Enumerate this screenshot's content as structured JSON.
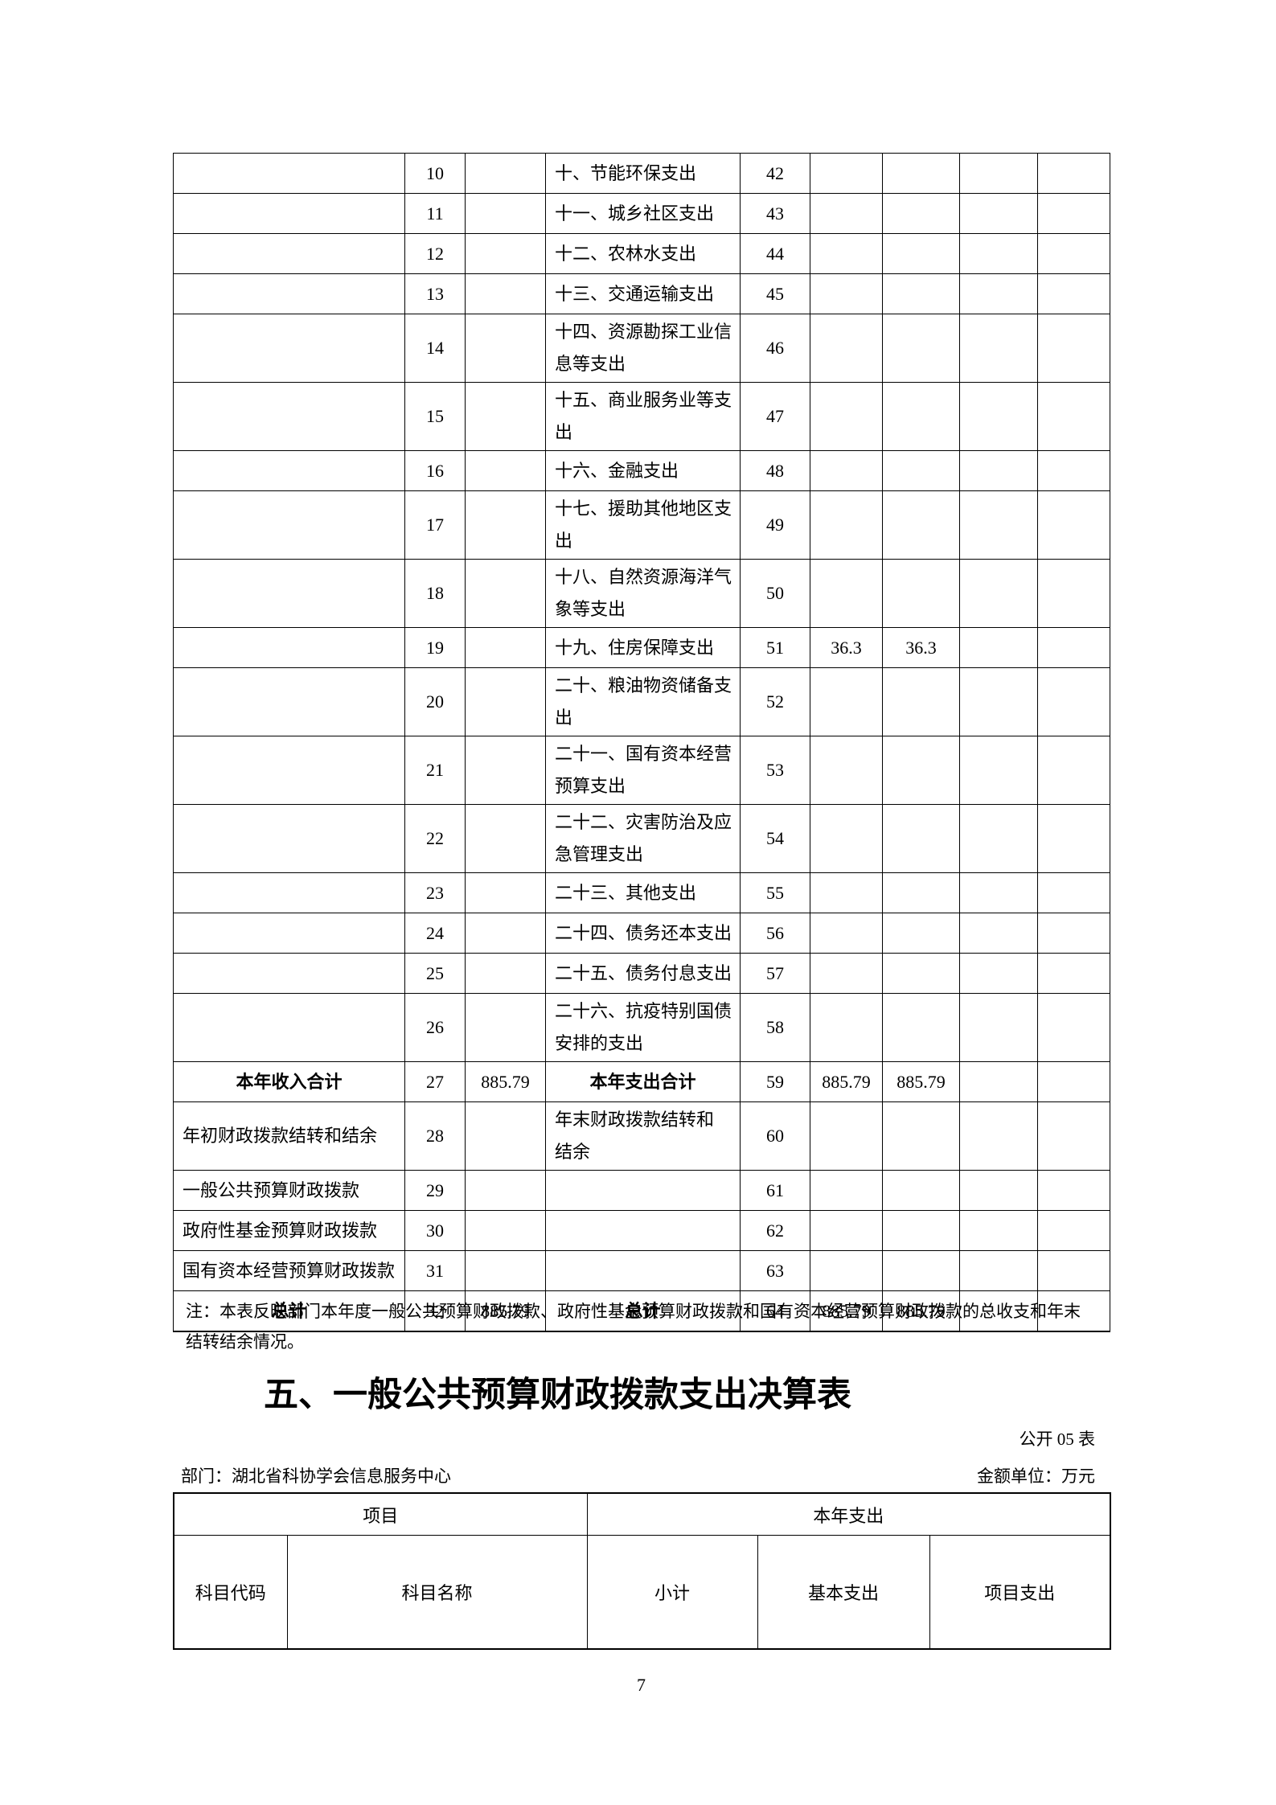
{
  "table1": {
    "rows": [
      {
        "cells": [
          "",
          "10",
          "",
          "十、节能环保支出",
          "42",
          "",
          "",
          "",
          ""
        ]
      },
      {
        "cells": [
          "",
          "11",
          "",
          "十一、城乡社区支出",
          "43",
          "",
          "",
          "",
          ""
        ]
      },
      {
        "cells": [
          "",
          "12",
          "",
          "十二、农林水支出",
          "44",
          "",
          "",
          "",
          ""
        ]
      },
      {
        "cells": [
          "",
          "13",
          "",
          "十三、交通运输支出",
          "45",
          "",
          "",
          "",
          ""
        ]
      },
      {
        "cells": [
          "",
          "14",
          "",
          "十四、资源勘探工业信\n息等支出",
          "46",
          "",
          "",
          "",
          ""
        ]
      },
      {
        "cells": [
          "",
          "15",
          "",
          "十五、商业服务业等支\n出",
          "47",
          "",
          "",
          "",
          ""
        ]
      },
      {
        "cells": [
          "",
          "16",
          "",
          "十六、金融支出",
          "48",
          "",
          "",
          "",
          ""
        ]
      },
      {
        "cells": [
          "",
          "17",
          "",
          "十七、援助其他地区支\n出",
          "49",
          "",
          "",
          "",
          ""
        ]
      },
      {
        "cells": [
          "",
          "18",
          "",
          "十八、自然资源海洋气\n象等支出",
          "50",
          "",
          "",
          "",
          ""
        ]
      },
      {
        "cells": [
          "",
          "19",
          "",
          "十九、住房保障支出",
          "51",
          "36.3",
          "36.3",
          "",
          ""
        ]
      },
      {
        "cells": [
          "",
          "20",
          "",
          "二十、粮油物资储备支\n出",
          "52",
          "",
          "",
          "",
          ""
        ]
      },
      {
        "cells": [
          "",
          "21",
          "",
          "二十一、国有资本经营\n预算支出",
          "53",
          "",
          "",
          "",
          ""
        ]
      },
      {
        "cells": [
          "",
          "22",
          "",
          "二十二、灾害防治及应\n急管理支出",
          "54",
          "",
          "",
          "",
          ""
        ]
      },
      {
        "cells": [
          "",
          "23",
          "",
          "二十三、其他支出",
          "55",
          "",
          "",
          "",
          ""
        ]
      },
      {
        "cells": [
          "",
          "24",
          "",
          "二十四、债务还本支出",
          "56",
          "",
          "",
          "",
          ""
        ]
      },
      {
        "cells": [
          "",
          "25",
          "",
          "二十五、债务付息支出",
          "57",
          "",
          "",
          "",
          ""
        ]
      },
      {
        "cells": [
          "",
          "26",
          "",
          "二十六、抗疫特别国债\n安排的支出",
          "58",
          "",
          "",
          "",
          ""
        ]
      },
      {
        "cells": [
          "本年收入合计",
          "27",
          "885.79",
          "本年支出合计",
          "59",
          "885.79",
          "885.79",
          "",
          ""
        ],
        "bold": true
      },
      {
        "cells": [
          "年初财政拨款结转和结余",
          "28",
          "",
          "年末财政拨款结转和\n结余",
          "60",
          "",
          "",
          "",
          ""
        ]
      },
      {
        "cells": [
          "一般公共预算财政拨款",
          "29",
          "",
          "",
          "61",
          "",
          "",
          "",
          ""
        ]
      },
      {
        "cells": [
          "政府性基金预算财政拨款",
          "30",
          "",
          "",
          "62",
          "",
          "",
          "",
          ""
        ]
      },
      {
        "cells": [
          "国有资本经营预算财政拨款",
          "31",
          "",
          "",
          "63",
          "",
          "",
          "",
          ""
        ]
      },
      {
        "cells": [
          "总计",
          "32",
          "885.79",
          "总计",
          "64",
          "885.79",
          "885.79",
          "",
          ""
        ],
        "bold": true
      }
    ],
    "note_line1": "注：本表反映部门本年度一般公共预算财政拨款、政府性基金预算财政拨款和国有资本经营预算财政拨款的总收支和年末",
    "note_line2": "结转结余情况。"
  },
  "section": {
    "title": "五、一般公共预算财政拨款支出决算表",
    "table_code": "公开 05 表",
    "department": "部门：湖北省科协学会信息服务中心",
    "unit": "金额单位：万元"
  },
  "table2": {
    "group_headers": [
      "项目",
      "本年支出"
    ],
    "column_headers": [
      "科目代码",
      "科目名称",
      "小计",
      "基本支出",
      "项目支出"
    ]
  },
  "footer": {
    "page_number": "7"
  }
}
